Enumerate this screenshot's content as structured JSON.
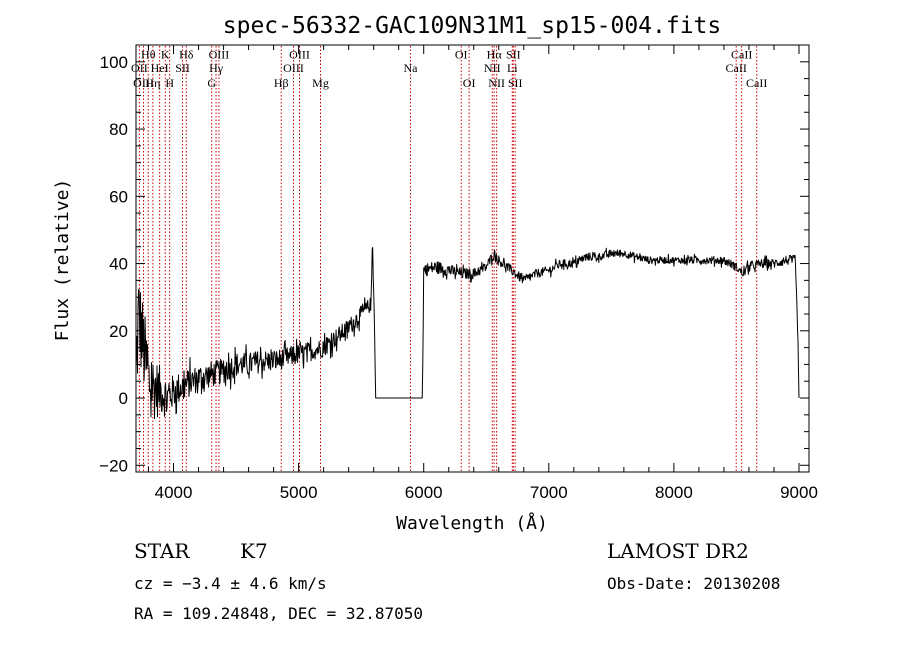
{
  "title": "spec-56332-GAC109N31M1_sp15-004.fits",
  "info": {
    "object_class": "STAR",
    "subclass": "K7",
    "survey": "LAMOST DR2",
    "cz": "cz = −3.4 ± 4.6 km/s",
    "obs_date": "Obs-Date: 20130208",
    "coords": "RA = 109.24848, DEC =  32.87050"
  },
  "chart_data": {
    "type": "line",
    "xlabel": "Wavelength (Å)",
    "ylabel": "Flux (relative)",
    "xlim": [
      3700,
      9080
    ],
    "ylim": [
      -22,
      105
    ],
    "x_ticks": [
      4000,
      5000,
      6000,
      7000,
      8000,
      9000
    ],
    "y_ticks": [
      -20,
      0,
      20,
      40,
      60,
      80,
      100
    ],
    "y_tick_labels": [
      "−20",
      "0",
      "20",
      "40",
      "60",
      "80",
      "100"
    ],
    "grid": false,
    "line_color": "#000000",
    "marker_color": "#cc0000",
    "spectrum_knots": [
      [
        3700,
        5
      ],
      [
        3720,
        25
      ],
      [
        3760,
        15
      ],
      [
        3800,
        5
      ],
      [
        3850,
        3
      ],
      [
        3900,
        2
      ],
      [
        3950,
        0
      ],
      [
        4000,
        2
      ],
      [
        4100,
        4
      ],
      [
        4200,
        6
      ],
      [
        4300,
        7
      ],
      [
        4400,
        8
      ],
      [
        4500,
        10
      ],
      [
        4600,
        10
      ],
      [
        4700,
        11
      ],
      [
        4800,
        11
      ],
      [
        4900,
        12
      ],
      [
        5000,
        13
      ],
      [
        5100,
        14
      ],
      [
        5200,
        15
      ],
      [
        5300,
        18
      ],
      [
        5400,
        21
      ],
      [
        5500,
        25
      ],
      [
        5580,
        28
      ],
      [
        5590,
        48
      ],
      [
        5605,
        25
      ],
      [
        5615,
        0
      ],
      [
        5990,
        0
      ],
      [
        6000,
        38
      ],
      [
        6100,
        39
      ],
      [
        6200,
        38
      ],
      [
        6300,
        37
      ],
      [
        6400,
        37
      ],
      [
        6500,
        39
      ],
      [
        6560,
        43
      ],
      [
        6600,
        41
      ],
      [
        6700,
        38
      ],
      [
        6800,
        35
      ],
      [
        6900,
        37
      ],
      [
        7000,
        38
      ],
      [
        7100,
        40
      ],
      [
        7200,
        40
      ],
      [
        7300,
        42
      ],
      [
        7400,
        42
      ],
      [
        7500,
        43
      ],
      [
        7600,
        43
      ],
      [
        7700,
        42
      ],
      [
        7800,
        41
      ],
      [
        7900,
        41
      ],
      [
        8000,
        41
      ],
      [
        8100,
        41
      ],
      [
        8200,
        41
      ],
      [
        8300,
        41
      ],
      [
        8400,
        41
      ],
      [
        8500,
        39
      ],
      [
        8550,
        37
      ],
      [
        8600,
        39
      ],
      [
        8700,
        40
      ],
      [
        8800,
        40
      ],
      [
        8900,
        41
      ],
      [
        8970,
        41
      ],
      [
        8990,
        20
      ],
      [
        9000,
        0
      ]
    ],
    "noise_profile": [
      [
        3700,
        15
      ],
      [
        3800,
        12
      ],
      [
        3900,
        7
      ],
      [
        4000,
        5
      ],
      [
        4200,
        4
      ],
      [
        4600,
        3.5
      ],
      [
        5000,
        3
      ],
      [
        5500,
        2.5
      ],
      [
        5600,
        2
      ],
      [
        6000,
        2
      ],
      [
        6500,
        1.5
      ],
      [
        7000,
        1.3
      ],
      [
        8000,
        1.0
      ],
      [
        8600,
        1.3
      ],
      [
        9000,
        1.5
      ]
    ],
    "spectral_lines": [
      {
        "label": "Hθ",
        "wavelength": 3798,
        "label_y": 101
      },
      {
        "label": "OII",
        "wavelength": 3727,
        "label_y": 97
      },
      {
        "label": "OIII",
        "wavelength": 3760,
        "label_y": 92.5
      },
      {
        "label": "Hη",
        "wavelength": 3835,
        "label_y": 92.5
      },
      {
        "label": "K",
        "wavelength": 3934,
        "label_y": 101
      },
      {
        "label": "HeI",
        "wavelength": 3889,
        "label_y": 97
      },
      {
        "label": "SII",
        "wavelength": 4072,
        "label_y": 97
      },
      {
        "label": "H",
        "wavelength": 3969,
        "label_y": 92.5
      },
      {
        "label": "Hδ",
        "wavelength": 4102,
        "label_y": 101
      },
      {
        "label": "OIII",
        "wavelength": 4363,
        "label_y": 101
      },
      {
        "label": "Hγ",
        "wavelength": 4340,
        "label_y": 97
      },
      {
        "label": "G",
        "wavelength": 4305,
        "label_y": 92.5
      },
      {
        "label": "Hβ",
        "wavelength": 4861,
        "label_y": 92.5
      },
      {
        "label": "OIII",
        "wavelength": 5007,
        "label_y": 101
      },
      {
        "label": "OIII",
        "wavelength": 4959,
        "label_y": 97
      },
      {
        "label": "Mg",
        "wavelength": 5175,
        "label_y": 92.5
      },
      {
        "label": "Na",
        "wavelength": 5894,
        "label_y": 97
      },
      {
        "label": "OI",
        "wavelength": 6300,
        "label_y": 101
      },
      {
        "label": "OI",
        "wavelength": 6363,
        "label_y": 92.5
      },
      {
        "label": "Hα",
        "wavelength": 6563,
        "label_y": 101
      },
      {
        "label": "NII",
        "wavelength": 6548,
        "label_y": 97
      },
      {
        "label": "NII",
        "wavelength": 6583,
        "label_y": 92.5
      },
      {
        "label": "SII",
        "wavelength": 6716,
        "label_y": 101
      },
      {
        "label": "Li",
        "wavelength": 6708,
        "label_y": 97
      },
      {
        "label": "SII",
        "wavelength": 6731,
        "label_y": 92.5
      },
      {
        "label": "CaII",
        "wavelength": 8542,
        "label_y": 101
      },
      {
        "label": "CaII",
        "wavelength": 8498,
        "label_y": 97
      },
      {
        "label": "CaII",
        "wavelength": 8662,
        "label_y": 92.5
      }
    ]
  }
}
